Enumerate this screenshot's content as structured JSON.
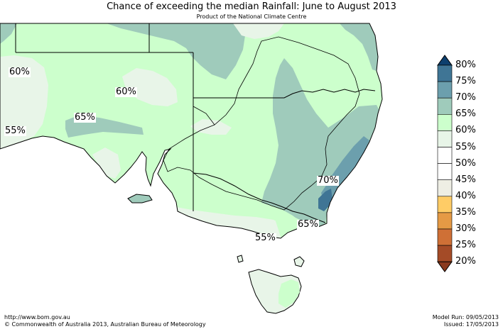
{
  "header": {
    "title": "Chance of exceeding the median Rainfall: June to August 2013",
    "subtitle": "Product of the National Climate Centre"
  },
  "map_labels": [
    "60%",
    "60%",
    "65%",
    "55%",
    "70%",
    "65%",
    "55%"
  ],
  "legend": {
    "items": [
      {
        "label": "80%",
        "color": "#0d3f6e"
      },
      {
        "label": "75%",
        "color": "#3f7595"
      },
      {
        "label": "70%",
        "color": "#6c9fad"
      },
      {
        "label": "65%",
        "color": "#9fcbbb"
      },
      {
        "label": "60%",
        "color": "#ccffcc"
      },
      {
        "label": "55%",
        "color": "#e8f5e8"
      },
      {
        "label": "50%",
        "color": "#ffffff"
      },
      {
        "label": "45%",
        "color": "#ffffff"
      },
      {
        "label": "40%",
        "color": "#eeeee4"
      },
      {
        "label": "35%",
        "color": "#ffcc66"
      },
      {
        "label": "30%",
        "color": "#e59a45"
      },
      {
        "label": "25%",
        "color": "#cf7036"
      },
      {
        "label": "20%",
        "color": "#a44b27"
      }
    ],
    "bottom_color": "#8a3a1f"
  },
  "colors": {
    "c65": "#9fcbbb",
    "c60": "#ccffcc",
    "c55": "#e8f5e8",
    "c70": "#6c9fad",
    "c75": "#3f7595"
  },
  "footer": {
    "url": "http://www.bom.gov.au",
    "copyright": "©  Commonwealth of Australia 2013, Australian Bureau of Meteorology",
    "model_run": "Model Run: 09/05/2013",
    "issued": "Issued: 17/05/2013"
  }
}
